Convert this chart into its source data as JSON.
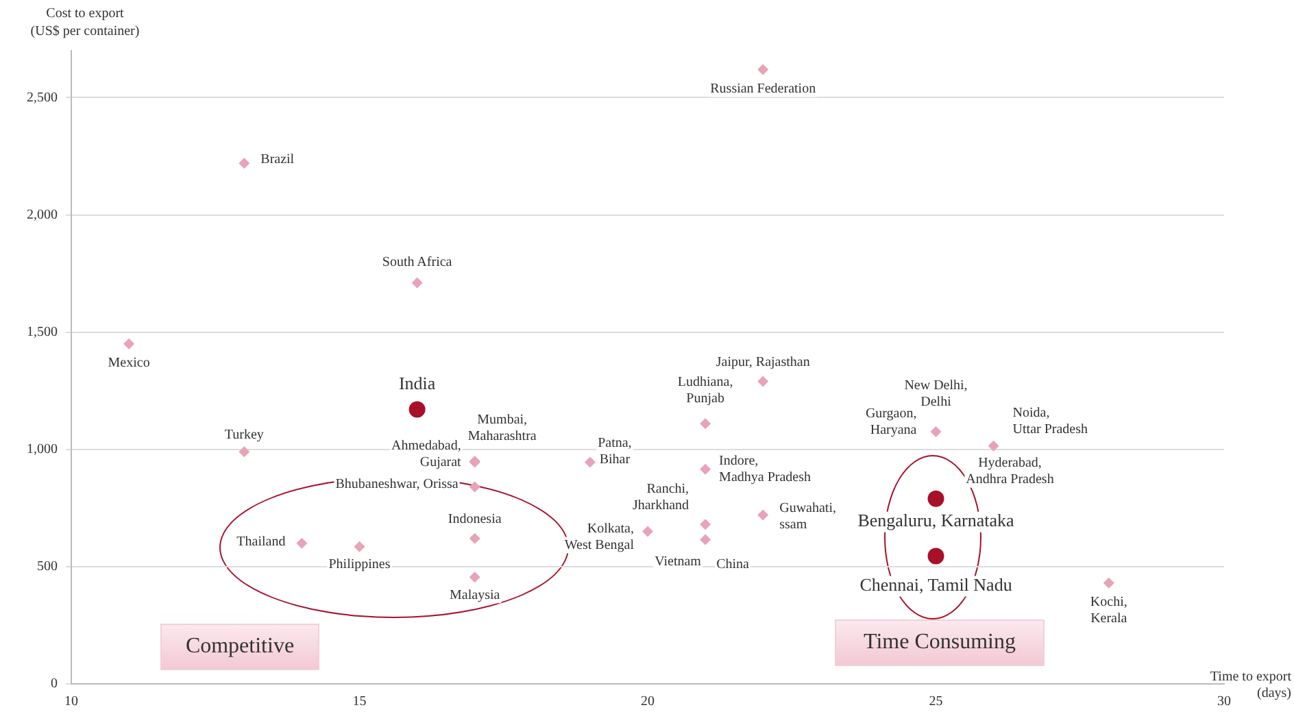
{
  "chart_data": {
    "type": "scatter",
    "xlabel": "Time to export\n(days)",
    "ylabel": "Cost to export\n(US$ per container)",
    "xlim": [
      10,
      30
    ],
    "xticks": [
      10,
      15,
      20,
      25,
      30
    ],
    "ylim": [
      0,
      2700
    ],
    "yticks": [
      0,
      500,
      {
        "value": 1000,
        "label": "1,000"
      },
      {
        "value": 1500,
        "label": "1,500"
      },
      {
        "value": 2000,
        "label": "2,000"
      },
      {
        "value": 2500,
        "label": "2,500"
      }
    ],
    "grid": "y",
    "legend": false,
    "series": [
      {
        "color": "#e8a3b6",
        "marker": "diamond",
        "x": [
          22,
          13,
          16,
          11,
          13,
          17,
          17,
          17,
          19,
          17,
          14,
          15,
          17,
          20,
          21,
          22,
          21,
          21,
          21,
          22,
          25,
          26,
          28
        ],
        "values": [
          2620,
          2220,
          1710,
          1450,
          990,
          950,
          945,
          840,
          945,
          620,
          600,
          585,
          455,
          650,
          1110,
          1290,
          915,
          680,
          615,
          720,
          1075,
          1015,
          430
        ]
      },
      {
        "color": "#a8102a",
        "marker": "circle",
        "x": [
          16,
          25,
          25
        ],
        "values": [
          1170,
          790,
          545
        ]
      }
    ],
    "annotations": [
      {
        "text": "Russian Federation",
        "x": 22,
        "y": 2620
      },
      {
        "text": "Brazil",
        "x": 13,
        "y": 2220
      },
      {
        "text": "South Africa",
        "x": 16,
        "y": 1710
      },
      {
        "text": "Mexico",
        "x": 11,
        "y": 1450
      },
      {
        "text": "India",
        "x": 16,
        "y": 1170
      },
      {
        "text": "Turkey",
        "x": 13,
        "y": 990
      },
      {
        "text": "Mumbai, Maharashtra",
        "x": 17,
        "y": 950
      },
      {
        "text": "Ahmedabad, Gujarat",
        "x": 17,
        "y": 945
      },
      {
        "text": "Bhubaneshwar, Orissa",
        "x": 17,
        "y": 840
      },
      {
        "text": "Patna, Bihar",
        "x": 19,
        "y": 945
      },
      {
        "text": "Indonesia",
        "x": 17,
        "y": 620
      },
      {
        "text": "Thailand",
        "x": 14,
        "y": 600
      },
      {
        "text": "Philippines",
        "x": 15,
        "y": 585
      },
      {
        "text": "Malaysia",
        "x": 17,
        "y": 455
      },
      {
        "text": "Kolkata, West Bengal",
        "x": 20,
        "y": 650
      },
      {
        "text": "Ludhiana, Punjab",
        "x": 21,
        "y": 1110
      },
      {
        "text": "Jaipur, Rajasthan",
        "x": 22,
        "y": 1290
      },
      {
        "text": "Indore, Madhya Pradesh",
        "x": 21,
        "y": 915
      },
      {
        "text": "Ranchi, Jharkhand",
        "x": 21,
        "y": 680
      },
      {
        "text": "Vietnam",
        "x": 21,
        "y": 625
      },
      {
        "text": "China",
        "x": 21,
        "y": 615
      },
      {
        "text": "Guwahati, ssam",
        "x": 22,
        "y": 720
      },
      {
        "text": "New Delhi, Delhi",
        "x": 25,
        "y": 1080
      },
      {
        "text": "Gurgaon, Haryana",
        "x": 25,
        "y": 1075
      },
      {
        "text": "Noida, Uttar Pradesh",
        "x": 26,
        "y": 1015
      },
      {
        "text": "Hyderabad, Andhra Pradesh",
        "x": 25,
        "y": 790
      },
      {
        "text": "Bengaluru, Karnataka",
        "x": 25,
        "y": 790
      },
      {
        "text": "Chennai, Tamil Nadu",
        "x": 25,
        "y": 545
      },
      {
        "text": "Kochi, Kerala",
        "x": 28,
        "y": 430
      },
      "Competitive",
      "Time Consuming"
    ]
  }
}
